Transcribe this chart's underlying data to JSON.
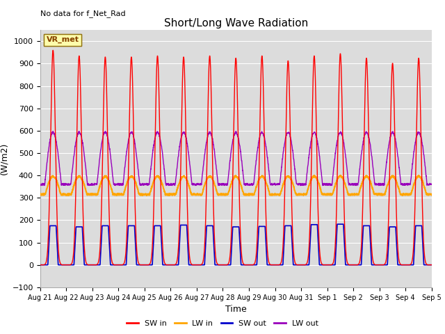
{
  "title": "Short/Long Wave Radiation",
  "xlabel": "Time",
  "ylabel": "(W/m2)",
  "ylim": [
    -100,
    1050
  ],
  "bg_color": "#dcdcdc",
  "text_no_data": "No data for f_Net_Rad",
  "legend_label": "VR_met",
  "x_tick_labels": [
    "Aug 21",
    "Aug 22",
    "Aug 23",
    "Aug 24",
    "Aug 25",
    "Aug 26",
    "Aug 27",
    "Aug 28",
    "Aug 29",
    "Aug 30",
    "Aug 31",
    "Sep 1",
    "Sep 2",
    "Sep 3",
    "Sep 4",
    "Sep 5"
  ],
  "colors": {
    "SW_in": "#ff0000",
    "LW_in": "#ffa500",
    "SW_out": "#0000cc",
    "LW_out": "#9900bb"
  },
  "n_days": 15,
  "SW_in_peak": [
    960,
    935,
    930,
    930,
    935,
    930,
    935,
    925,
    935,
    913,
    935,
    945,
    925,
    902,
    925
  ],
  "SW_out_peak": [
    175,
    170,
    175,
    175,
    175,
    178,
    175,
    170,
    172,
    175,
    180,
    182,
    175,
    170,
    175
  ],
  "LW_in_night": 315,
  "LW_in_day_peak": 410,
  "LW_out_night": 360,
  "LW_out_day_peak": 600,
  "pts_per_day": 144
}
